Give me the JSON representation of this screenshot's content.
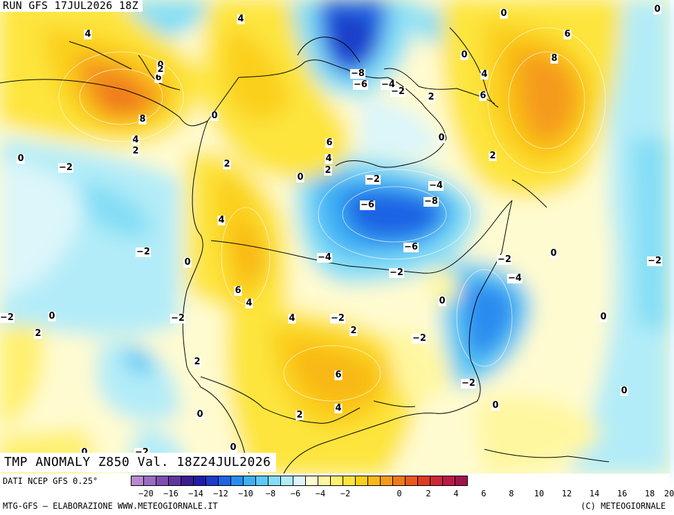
{
  "header": {
    "run_label": "RUN GFS 17JUL2026 18Z"
  },
  "title": "TMP ANOMALY Z850 Val. 18Z24JUL2026",
  "footer": {
    "source": "DATI NCEP GFS 0.25°",
    "credit_left": "MTG-GFS — ELABORAZIONE WWW.METEOGIORNALE.IT",
    "credit_right": "(C) METEOGIORNALE"
  },
  "colorbar": {
    "colors": [
      "#b788d0",
      "#9a6cc0",
      "#7d4eb0",
      "#5f36a0",
      "#3a1c90",
      "#1e1ca8",
      "#1a3cc8",
      "#1e64e4",
      "#2a8cf0",
      "#3cb0f4",
      "#5ccaf4",
      "#84def6",
      "#b2ecf8",
      "#dcf6fa",
      "#fffbd0",
      "#fff7a0",
      "#fff070",
      "#fde53c",
      "#fbd01a",
      "#f8b818",
      "#f59a1c",
      "#ef7a1c",
      "#e85a1c",
      "#dc3c24",
      "#cc2838",
      "#b81c44",
      "#a0144e"
    ],
    "ticks": [
      "−20",
      "−16",
      "−14",
      "−12",
      "−10",
      "−8",
      "−6",
      "−4",
      "−2",
      "0",
      "2",
      "4",
      "6",
      "8",
      "10",
      "12",
      "14",
      "16",
      "18",
      "20"
    ]
  },
  "contour_labels": [
    "4",
    "4",
    "0",
    "0",
    "0",
    "2",
    "6",
    "8",
    "4",
    "2",
    "0",
    "0",
    "−2",
    "−2",
    "−2",
    "−2",
    "2",
    "4",
    "6",
    "4",
    "2",
    "6",
    "4",
    "2",
    "0",
    "−8",
    "−6",
    "−4",
    "−2",
    "2",
    "6",
    "8",
    "4",
    "0",
    "6",
    "2",
    "0",
    "−2",
    "−6",
    "−8",
    "−6",
    "−4",
    "−4",
    "−2",
    "0",
    "0",
    "−2",
    "−2",
    "−4",
    "0",
    "−2",
    "0",
    "4",
    "2",
    "6",
    "4",
    "2",
    "−2",
    "−2",
    "0",
    "0",
    "0",
    "0",
    "0",
    "−2",
    "0",
    "2",
    "2",
    "−2"
  ]
}
